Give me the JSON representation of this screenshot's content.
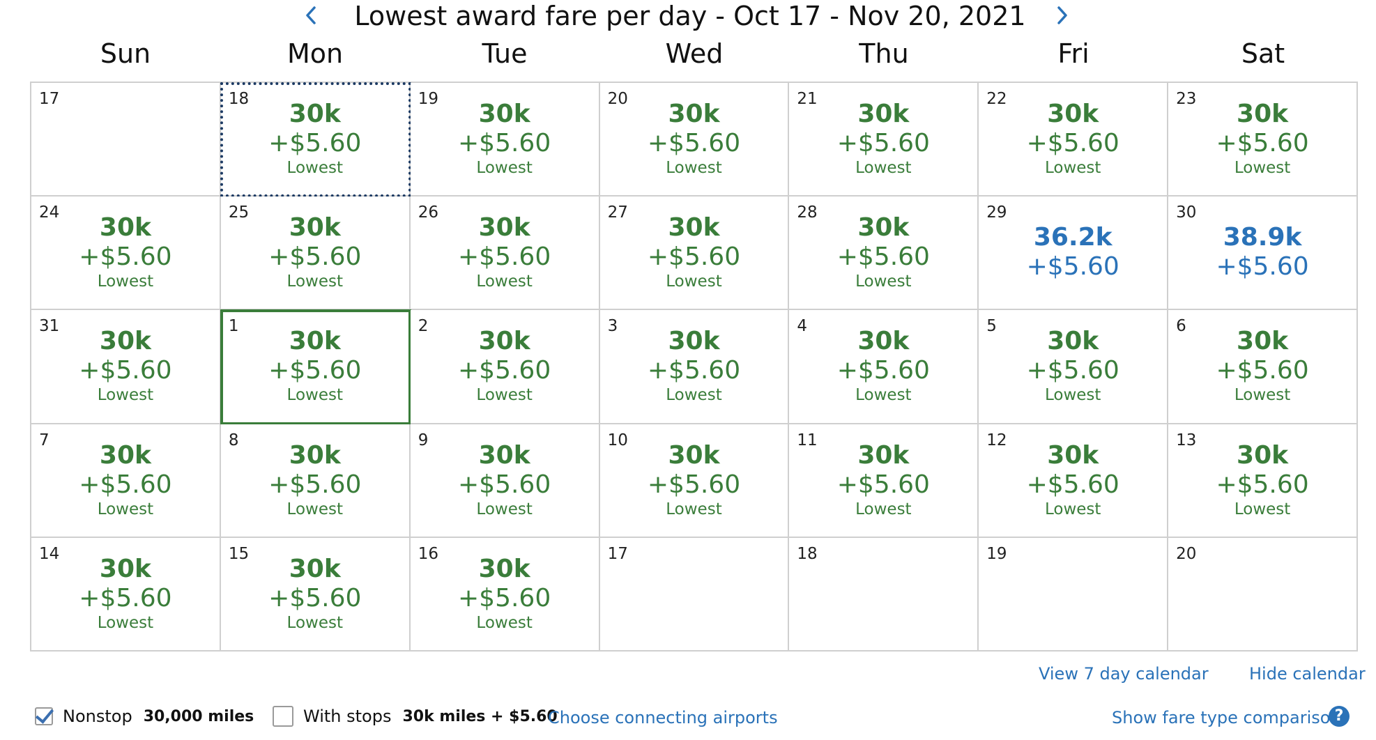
{
  "header": {
    "title": "Lowest award fare per day - Oct 17 - Nov 20, 2021",
    "prev_icon": "chevron-left-icon",
    "next_icon": "chevron-right-icon",
    "accent_color": "#2a72b8"
  },
  "weekdays": [
    "Sun",
    "Mon",
    "Tue",
    "Wed",
    "Thu",
    "Fri",
    "Sat"
  ],
  "colors": {
    "lowest": "#3a7d3a",
    "higher": "#2a72b8",
    "grid": "#cfcfcf",
    "focus": "#1c3a63"
  },
  "calendar": [
    {
      "day": "17"
    },
    {
      "day": "18",
      "miles": "30k",
      "fee": "+$5.60",
      "label": "Lowest",
      "state": "focused"
    },
    {
      "day": "19",
      "miles": "30k",
      "fee": "+$5.60",
      "label": "Lowest"
    },
    {
      "day": "20",
      "miles": "30k",
      "fee": "+$5.60",
      "label": "Lowest"
    },
    {
      "day": "21",
      "miles": "30k",
      "fee": "+$5.60",
      "label": "Lowest"
    },
    {
      "day": "22",
      "miles": "30k",
      "fee": "+$5.60",
      "label": "Lowest"
    },
    {
      "day": "23",
      "miles": "30k",
      "fee": "+$5.60",
      "label": "Lowest"
    },
    {
      "day": "24",
      "miles": "30k",
      "fee": "+$5.60",
      "label": "Lowest"
    },
    {
      "day": "25",
      "miles": "30k",
      "fee": "+$5.60",
      "label": "Lowest"
    },
    {
      "day": "26",
      "miles": "30k",
      "fee": "+$5.60",
      "label": "Lowest"
    },
    {
      "day": "27",
      "miles": "30k",
      "fee": "+$5.60",
      "label": "Lowest"
    },
    {
      "day": "28",
      "miles": "30k",
      "fee": "+$5.60",
      "label": "Lowest"
    },
    {
      "day": "29",
      "miles": "36.2k",
      "fee": "+$5.60",
      "tier": "higher"
    },
    {
      "day": "30",
      "miles": "38.9k",
      "fee": "+$5.60",
      "tier": "higher"
    },
    {
      "day": "31",
      "miles": "30k",
      "fee": "+$5.60",
      "label": "Lowest"
    },
    {
      "day": "1",
      "miles": "30k",
      "fee": "+$5.60",
      "label": "Lowest",
      "state": "selected"
    },
    {
      "day": "2",
      "miles": "30k",
      "fee": "+$5.60",
      "label": "Lowest"
    },
    {
      "day": "3",
      "miles": "30k",
      "fee": "+$5.60",
      "label": "Lowest"
    },
    {
      "day": "4",
      "miles": "30k",
      "fee": "+$5.60",
      "label": "Lowest"
    },
    {
      "day": "5",
      "miles": "30k",
      "fee": "+$5.60",
      "label": "Lowest"
    },
    {
      "day": "6",
      "miles": "30k",
      "fee": "+$5.60",
      "label": "Lowest"
    },
    {
      "day": "7",
      "miles": "30k",
      "fee": "+$5.60",
      "label": "Lowest"
    },
    {
      "day": "8",
      "miles": "30k",
      "fee": "+$5.60",
      "label": "Lowest"
    },
    {
      "day": "9",
      "miles": "30k",
      "fee": "+$5.60",
      "label": "Lowest"
    },
    {
      "day": "10",
      "miles": "30k",
      "fee": "+$5.60",
      "label": "Lowest"
    },
    {
      "day": "11",
      "miles": "30k",
      "fee": "+$5.60",
      "label": "Lowest"
    },
    {
      "day": "12",
      "miles": "30k",
      "fee": "+$5.60",
      "label": "Lowest"
    },
    {
      "day": "13",
      "miles": "30k",
      "fee": "+$5.60",
      "label": "Lowest"
    },
    {
      "day": "14",
      "miles": "30k",
      "fee": "+$5.60",
      "label": "Lowest"
    },
    {
      "day": "15",
      "miles": "30k",
      "fee": "+$5.60",
      "label": "Lowest"
    },
    {
      "day": "16",
      "miles": "30k",
      "fee": "+$5.60",
      "label": "Lowest"
    },
    {
      "day": "17"
    },
    {
      "day": "18"
    },
    {
      "day": "19"
    },
    {
      "day": "20"
    }
  ],
  "links": {
    "view_7_day": "View 7 day calendar",
    "hide_calendar": "Hide calendar",
    "choose_connecting": "Choose connecting airports",
    "fare_comparison": "Show fare type comparison",
    "help_icon": "question-circle-icon",
    "help_glyph": "?"
  },
  "options": {
    "nonstop": {
      "label": "Nonstop",
      "value": "30,000 miles",
      "checked": true
    },
    "with_stops": {
      "label": "With stops",
      "value": "30k miles + $5.60",
      "checked": false
    }
  }
}
